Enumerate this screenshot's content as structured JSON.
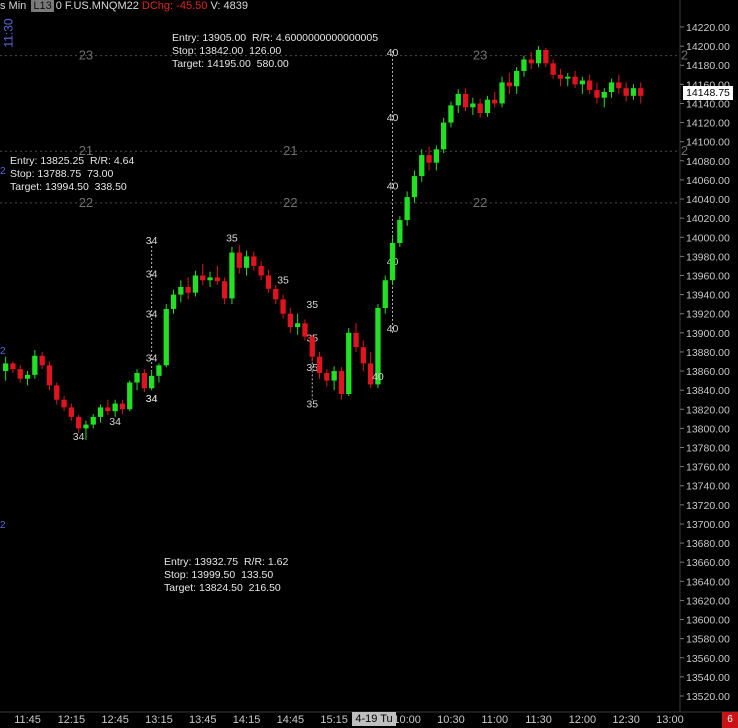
{
  "header": {
    "left_fragment": "s Min",
    "box_label": "L13",
    "zero": "0",
    "symbol": "F.US.MNQM22",
    "change_label": "DChg:",
    "change_value": "-45.50",
    "volume": "V: 4839"
  },
  "side": {
    "time": "11:30",
    "mark_top": "2",
    "mark_mid": "2",
    "mark_bot": "2"
  },
  "last_price": "14148.75",
  "corner_badge": "6",
  "session_label": "4-19 Tu",
  "annotations": {
    "a1": "Entry: 13905.00  R/R: 4.6000000000000005\nStop: 13842.00  126.00\nTarget: 14195.00  580.00",
    "a2": "Entry: 13825.25  R/R: 4.64\nStop: 13788.75  73.00\nTarget: 13994.50  338.50",
    "a3": "Entry: 13932.75  R/R: 1.62\nStop: 13999.50  133.50\nTarget: 13824.50  216.50"
  },
  "colors": {
    "up": "#22e022",
    "down": "#e0141e",
    "bg": "#000000",
    "grid": "#4a4a4a",
    "text": "#c8c8c8"
  },
  "chart_data": {
    "type": "candlestick",
    "symbol": "F.US.MNQM22",
    "ylim": [
      13510,
      14240
    ],
    "y_ticks": [
      14220,
      14200,
      14180,
      14160,
      14140,
      14120,
      14100,
      14080,
      14060,
      14040,
      14020,
      14000,
      13980,
      13960,
      13940,
      13920,
      13900,
      13880,
      13860,
      13840,
      13820,
      13800,
      13780,
      13760,
      13740,
      13720,
      13700,
      13680,
      13660,
      13640,
      13620,
      13600,
      13580,
      13560,
      13540,
      13520
    ],
    "y_tick_labels": [
      "14220.00",
      "14200.00",
      "14180.00",
      "14160.00",
      "14140.00",
      "14120.00",
      "14100.00",
      "14080.00",
      "14060.00",
      "14040.00",
      "14020.00",
      "14000.00",
      "13980.00",
      "13960.00",
      "13940.00",
      "13920.00",
      "13900.00",
      "13880.00",
      "13860.00",
      "13840.00",
      "13820.00",
      "13800.00",
      "13780.00",
      "13760.00",
      "13740.00",
      "13720.00",
      "13700.00",
      "13680.00",
      "13660.00",
      "13640.00",
      "13620.00",
      "13600.00",
      "13580.00",
      "13560.00",
      "13540.00",
      "13520.00"
    ],
    "x_labels": [
      "11:45",
      "12:15",
      "12:45",
      "13:15",
      "13:45",
      "14:15",
      "14:45",
      "15:15",
      "10:00",
      "10:30",
      "11:00",
      "11:30",
      "12:00",
      "12:30",
      "13:00"
    ],
    "x_label_bar_index": [
      3,
      9,
      15,
      21,
      27,
      33,
      39,
      45,
      55,
      61,
      67,
      73,
      79,
      85,
      91
    ],
    "last_price": 14148.75,
    "hlines": [
      {
        "price": 14190,
        "labels": [
          "23",
          "23",
          "2"
        ],
        "label_bar_index": [
          11,
          65,
          93
        ]
      },
      {
        "price": 14090,
        "labels": [
          "21",
          "21",
          "2"
        ],
        "label_bar_index": [
          11,
          39,
          93
        ]
      },
      {
        "price": 14036,
        "labels": [
          "22",
          "22",
          "22"
        ],
        "label_bar_index": [
          11,
          39,
          65
        ]
      }
    ],
    "vlines": [
      {
        "bar_index": 53,
        "from": 14195,
        "to": 13900,
        "labels": [
          "40",
          "40",
          "40",
          "40",
          "40"
        ],
        "label_prices": [
          14194,
          14126,
          14054,
          13975,
          13905
        ]
      },
      {
        "bar_index": 20,
        "from": 13995,
        "to": 13860,
        "labels": [
          "34",
          "34",
          "34",
          "34",
          "34"
        ],
        "label_prices": [
          13997,
          13962,
          13920,
          13874,
          13832
        ]
      },
      {
        "bar_index": 42,
        "from": 13890,
        "to": 13830,
        "labels": [
          "35",
          "35",
          "35"
        ],
        "label_prices": [
          13895,
          13864,
          13826
        ]
      }
    ],
    "swing_labels": [
      {
        "label": "34",
        "bar_index": 10,
        "price": 13792
      },
      {
        "label": "34",
        "bar_index": 15,
        "price": 13808
      },
      {
        "label": "34",
        "bar_index": 20,
        "price": 13832
      },
      {
        "label": "35",
        "bar_index": 31,
        "price": 14000
      },
      {
        "label": "35",
        "bar_index": 38,
        "price": 13956
      },
      {
        "label": "35",
        "bar_index": 42,
        "price": 13930
      },
      {
        "label": "40",
        "bar_index": 51,
        "price": 13855
      }
    ],
    "candles": [
      [
        13860,
        13875,
        13850,
        13868
      ],
      [
        13868,
        13870,
        13858,
        13862
      ],
      [
        13862,
        13866,
        13848,
        13852
      ],
      [
        13852,
        13860,
        13845,
        13856
      ],
      [
        13856,
        13882,
        13852,
        13876
      ],
      [
        13876,
        13880,
        13862,
        13866
      ],
      [
        13866,
        13870,
        13840,
        13845
      ],
      [
        13845,
        13848,
        13825,
        13830
      ],
      [
        13830,
        13834,
        13818,
        13822
      ],
      [
        13822,
        13826,
        13808,
        13812
      ],
      [
        13812,
        13814,
        13795,
        13800
      ],
      [
        13800,
        13808,
        13788,
        13804
      ],
      [
        13804,
        13815,
        13800,
        13812
      ],
      [
        13812,
        13825,
        13806,
        13822
      ],
      [
        13822,
        13830,
        13814,
        13818
      ],
      [
        13818,
        13830,
        13812,
        13826
      ],
      [
        13826,
        13830,
        13815,
        13820
      ],
      [
        13820,
        13850,
        13818,
        13848
      ],
      [
        13848,
        13862,
        13840,
        13858
      ],
      [
        13858,
        13862,
        13838,
        13842
      ],
      [
        13842,
        13860,
        13840,
        13855
      ],
      [
        13855,
        13868,
        13848,
        13866
      ],
      [
        13866,
        13930,
        13864,
        13925
      ],
      [
        13925,
        13945,
        13920,
        13940
      ],
      [
        13940,
        13955,
        13932,
        13948
      ],
      [
        13948,
        13958,
        13935,
        13942
      ],
      [
        13942,
        13965,
        13938,
        13960
      ],
      [
        13960,
        13972,
        13950,
        13955
      ],
      [
        13955,
        13964,
        13948,
        13958
      ],
      [
        13958,
        13970,
        13950,
        13954
      ],
      [
        13954,
        13958,
        13930,
        13936
      ],
      [
        13936,
        13990,
        13930,
        13984
      ],
      [
        13984,
        13992,
        13962,
        13968
      ],
      [
        13968,
        13986,
        13960,
        13980
      ],
      [
        13980,
        13985,
        13965,
        13970
      ],
      [
        13970,
        13975,
        13955,
        13960
      ],
      [
        13960,
        13966,
        13942,
        13946
      ],
      [
        13946,
        13950,
        13930,
        13935
      ],
      [
        13935,
        13940,
        13915,
        13920
      ],
      [
        13920,
        13926,
        13900,
        13906
      ],
      [
        13906,
        13920,
        13898,
        13910
      ],
      [
        13910,
        13914,
        13892,
        13896
      ],
      [
        13896,
        13898,
        13870,
        13875
      ],
      [
        13875,
        13880,
        13852,
        13858
      ],
      [
        13858,
        13862,
        13844,
        13850
      ],
      [
        13850,
        13865,
        13840,
        13860
      ],
      [
        13860,
        13864,
        13830,
        13836
      ],
      [
        13836,
        13905,
        13834,
        13900
      ],
      [
        13900,
        13910,
        13880,
        13885
      ],
      [
        13885,
        13892,
        13860,
        13868
      ],
      [
        13868,
        13880,
        13842,
        13846
      ],
      [
        13846,
        13930,
        13842,
        13926
      ],
      [
        13926,
        13960,
        13920,
        13955
      ],
      [
        13955,
        14000,
        13950,
        13994
      ],
      [
        13994,
        14022,
        13990,
        14018
      ],
      [
        14018,
        14048,
        14012,
        14042
      ],
      [
        14042,
        14070,
        14036,
        14064
      ],
      [
        14064,
        14092,
        14058,
        14086
      ],
      [
        14086,
        14095,
        14070,
        14078
      ],
      [
        14078,
        14096,
        14070,
        14092
      ],
      [
        14092,
        14125,
        14088,
        14120
      ],
      [
        14120,
        14142,
        14115,
        14138
      ],
      [
        14138,
        14155,
        14130,
        14150
      ],
      [
        14150,
        14156,
        14132,
        14136
      ],
      [
        14136,
        14146,
        14128,
        14140
      ],
      [
        14140,
        14145,
        14125,
        14130
      ],
      [
        14130,
        14148,
        14126,
        14144
      ],
      [
        14144,
        14152,
        14136,
        14140
      ],
      [
        14140,
        14168,
        14136,
        14162
      ],
      [
        14162,
        14172,
        14150,
        14158
      ],
      [
        14158,
        14178,
        14150,
        14174
      ],
      [
        14174,
        14190,
        14168,
        14186
      ],
      [
        14186,
        14194,
        14176,
        14182
      ],
      [
        14182,
        14200,
        14178,
        14196
      ],
      [
        14196,
        14198,
        14178,
        14182
      ],
      [
        14182,
        14186,
        14166,
        14170
      ],
      [
        14170,
        14176,
        14158,
        14166
      ],
      [
        14166,
        14172,
        14158,
        14168
      ],
      [
        14168,
        14174,
        14156,
        14160
      ],
      [
        14160,
        14168,
        14150,
        14164
      ],
      [
        14164,
        14170,
        14150,
        14154
      ],
      [
        14154,
        14162,
        14140,
        14146
      ],
      [
        14146,
        14156,
        14136,
        14152
      ],
      [
        14152,
        14166,
        14146,
        14162
      ],
      [
        14162,
        14170,
        14150,
        14156
      ],
      [
        14156,
        14162,
        14142,
        14148
      ],
      [
        14148,
        14160,
        14144,
        14156
      ],
      [
        14156,
        14162,
        14140,
        14148
      ]
    ]
  }
}
